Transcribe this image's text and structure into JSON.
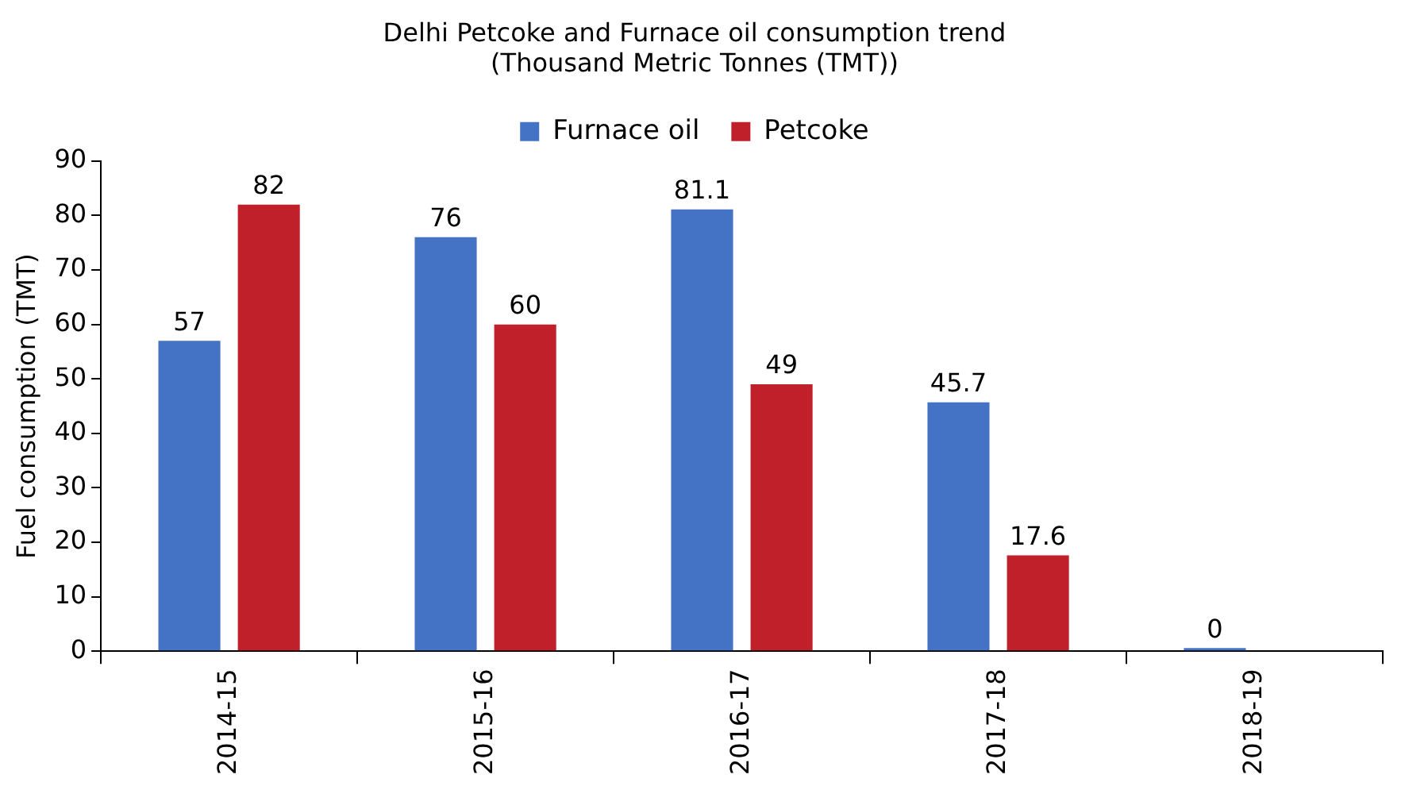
{
  "chart_data": {
    "type": "bar",
    "title": [
      "Delhi Petcoke and Furnace oil consumption trend",
      "(Thousand Metric Tonnes (TMT))"
    ],
    "ylabel": "Fuel consumption (TMT)",
    "categories": [
      "2014-15",
      "2015-16",
      "2016-17",
      "2017-18",
      "2018-19"
    ],
    "series": [
      {
        "name": "Furnace oil",
        "color": "#4472c4",
        "values": [
          57,
          76,
          81.1,
          45.7,
          0
        ],
        "value_labels": [
          "57",
          "76",
          "81.1",
          "45.7",
          "0"
        ]
      },
      {
        "name": "Petcoke",
        "color": "#c0202a",
        "values": [
          82,
          60,
          49,
          17.6,
          null
        ],
        "value_labels": [
          "82",
          "60",
          "49",
          "17.6",
          null
        ]
      }
    ],
    "ylim": [
      0,
      90
    ],
    "yticks": [
      0,
      10,
      20,
      30,
      40,
      50,
      60,
      70,
      80,
      90
    ],
    "grid": false,
    "legend": "top"
  }
}
